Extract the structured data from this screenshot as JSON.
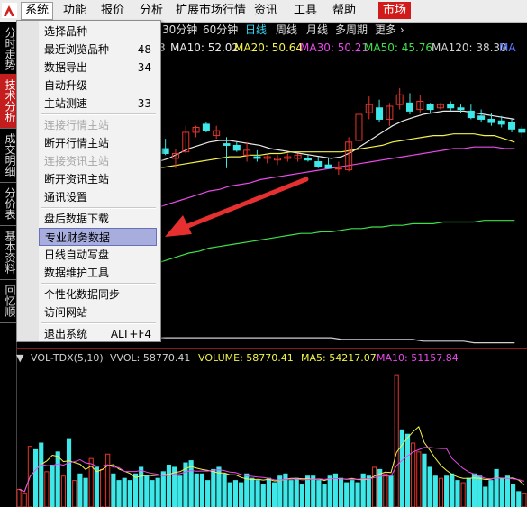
{
  "menubar": {
    "logo_icon": "app-logo-icon",
    "items": [
      {
        "label": "系统",
        "active": true
      },
      {
        "label": "功能"
      },
      {
        "label": "报价"
      },
      {
        "label": "分析"
      },
      {
        "label": "扩展市场行情"
      },
      {
        "label": "资讯"
      },
      {
        "label": "工具"
      },
      {
        "label": "帮助"
      }
    ],
    "market_button": "市场"
  },
  "sidebar": {
    "tabs": [
      {
        "label": "分时走势"
      },
      {
        "label": "技术分析",
        "selected": true
      },
      {
        "label": "成交明细"
      },
      {
        "label": "分价表"
      },
      {
        "label": "基本资料"
      },
      {
        "label": "回忆顺"
      }
    ]
  },
  "period_bar": {
    "items": [
      {
        "label": "30分钟"
      },
      {
        "label": "60分钟"
      },
      {
        "label": "日线",
        "selected": true
      },
      {
        "label": "周线"
      },
      {
        "label": "月线"
      },
      {
        "label": "多周期"
      },
      {
        "label": "更多"
      }
    ],
    "more_icon": "chevron-right-icon"
  },
  "ma_legend": [
    {
      "text": "3",
      "color": "#e8e8e8"
    },
    {
      "text": "MA10: 52.02",
      "color": "#e8e8e8"
    },
    {
      "text": "MA20: 50.64",
      "color": "#f2f24a"
    },
    {
      "text": "MA30: 50.21",
      "color": "#e94ae9"
    },
    {
      "text": "MA50: 45.76",
      "color": "#3ee04a"
    },
    {
      "text": "MA120: 38.30",
      "color": "#d0d0d0"
    },
    {
      "text": "MA",
      "color": "#5a78ff"
    }
  ],
  "vol_legend": [
    {
      "text": "VOL-TDX(5,10)",
      "color": "#d0d0d0"
    },
    {
      "text": "VVOL: 58770.41",
      "color": "#d0d0d0"
    },
    {
      "text": "VOLUME: 58770.41",
      "color": "#f2f24a"
    },
    {
      "text": "MA5: 54217.07",
      "color": "#f2f24a"
    },
    {
      "text": "MA10: 51157.84",
      "color": "#e94ae9"
    }
  ],
  "system_menu": {
    "items": [
      {
        "label": "选择品种"
      },
      {
        "label": "最近浏览品种",
        "shortcut": "48"
      },
      {
        "label": "数据导出",
        "shortcut": "34"
      },
      {
        "label": "自动升级"
      },
      {
        "label": "主站测速",
        "shortcut": "33"
      },
      {
        "separator": true
      },
      {
        "label": "连接行情主站",
        "disabled": true
      },
      {
        "label": "断开行情主站"
      },
      {
        "label": "连接资讯主站",
        "disabled": true
      },
      {
        "label": "断开资讯主站"
      },
      {
        "label": "通讯设置"
      },
      {
        "separator": true
      },
      {
        "label": "盘后数据下载"
      },
      {
        "label": "专业财务数据",
        "highlighted": true
      },
      {
        "label": "日线自动写盘"
      },
      {
        "label": "数据维护工具"
      },
      {
        "separator": true
      },
      {
        "label": "个性化数据同步"
      },
      {
        "label": "访问网站"
      },
      {
        "separator": true
      },
      {
        "label": "退出系统",
        "shortcut": "ALT+F4"
      }
    ]
  },
  "colors": {
    "up": "#e8342a",
    "down": "#3fe8e8",
    "menu_highlight": "#a7aede",
    "annotation_arrow": "#e63030"
  },
  "chart_data": [
    {
      "type": "candlestick",
      "note_series": "daily K-line with moving averages (values relative, read from shape)",
      "candles": [
        {
          "o": 50.2,
          "h": 50.8,
          "l": 49.8,
          "c": 49.9
        },
        {
          "o": 49.6,
          "h": 50.2,
          "l": 49.0,
          "c": 49.9
        },
        {
          "o": 50.0,
          "h": 51.6,
          "l": 49.9,
          "c": 51.2
        },
        {
          "o": 51.2,
          "h": 51.6,
          "l": 50.9,
          "c": 51.5
        },
        {
          "o": 51.7,
          "h": 51.8,
          "l": 51.2,
          "c": 51.3
        },
        {
          "o": 51.0,
          "h": 51.6,
          "l": 50.8,
          "c": 51.3
        },
        {
          "o": 50.5,
          "h": 50.9,
          "l": 49.0,
          "c": 50.4
        },
        {
          "o": 50.4,
          "h": 50.6,
          "l": 50.0,
          "c": 50.1
        },
        {
          "o": 49.8,
          "h": 50.6,
          "l": 49.4,
          "c": 50.1
        },
        {
          "o": 49.7,
          "h": 50.1,
          "l": 49.4,
          "c": 49.6
        },
        {
          "o": 49.6,
          "h": 49.8,
          "l": 49.3,
          "c": 49.7
        },
        {
          "o": 49.5,
          "h": 49.8,
          "l": 49.2,
          "c": 49.6
        },
        {
          "o": 49.6,
          "h": 49.9,
          "l": 49.4,
          "c": 49.7
        },
        {
          "o": 49.6,
          "h": 49.9,
          "l": 49.4,
          "c": 49.8
        },
        {
          "o": 49.6,
          "h": 49.8,
          "l": 49.4,
          "c": 49.5
        },
        {
          "o": 49.4,
          "h": 49.7,
          "l": 49.0,
          "c": 49.1
        },
        {
          "o": 49.2,
          "h": 49.6,
          "l": 49.0,
          "c": 49.0
        },
        {
          "o": 49.0,
          "h": 49.4,
          "l": 48.6,
          "c": 49.0
        },
        {
          "o": 48.9,
          "h": 50.9,
          "l": 48.8,
          "c": 50.6
        },
        {
          "o": 50.7,
          "h": 53.0,
          "l": 50.5,
          "c": 52.3
        },
        {
          "o": 52.4,
          "h": 53.4,
          "l": 52.0,
          "c": 52.9
        },
        {
          "o": 52.7,
          "h": 53.2,
          "l": 51.8,
          "c": 52.0
        },
        {
          "o": 52.0,
          "h": 53.0,
          "l": 51.6,
          "c": 52.8
        },
        {
          "o": 52.9,
          "h": 53.9,
          "l": 52.6,
          "c": 53.5
        },
        {
          "o": 53.0,
          "h": 53.6,
          "l": 52.3,
          "c": 52.5
        },
        {
          "o": 52.6,
          "h": 53.5,
          "l": 52.4,
          "c": 53.1
        },
        {
          "o": 52.9,
          "h": 53.0,
          "l": 52.4,
          "c": 52.6
        },
        {
          "o": 52.7,
          "h": 53.0,
          "l": 52.6,
          "c": 52.9
        },
        {
          "o": 52.9,
          "h": 53.1,
          "l": 52.5,
          "c": 52.7
        },
        {
          "o": 52.7,
          "h": 52.9,
          "l": 52.4,
          "c": 52.6
        },
        {
          "o": 52.5,
          "h": 52.9,
          "l": 52.0,
          "c": 52.1
        },
        {
          "o": 52.2,
          "h": 52.6,
          "l": 51.8,
          "c": 52.0
        },
        {
          "o": 52.0,
          "h": 52.4,
          "l": 51.6,
          "c": 51.8
        },
        {
          "o": 51.9,
          "h": 52.2,
          "l": 51.5,
          "c": 51.7
        },
        {
          "o": 51.8,
          "h": 52.0,
          "l": 51.2,
          "c": 51.4
        },
        {
          "o": 51.4,
          "h": 51.6,
          "l": 50.9,
          "c": 51.2
        }
      ],
      "ylim": [
        38,
        56
      ],
      "ma_lines": [
        {
          "name": "MA10",
          "color": "#e8e8e8",
          "values": [
            49.4,
            49.6,
            49.9,
            50.2,
            50.4,
            50.6,
            50.7,
            50.7,
            50.6,
            50.5,
            50.4,
            50.2,
            50.1,
            50.0,
            49.9,
            49.8,
            49.7,
            49.6,
            49.7,
            50.0,
            50.4,
            50.8,
            51.2,
            51.6,
            51.9,
            52.1,
            52.3,
            52.4,
            52.5,
            52.5,
            52.5,
            52.4,
            52.3,
            52.2,
            52.1,
            52.0
          ]
        },
        {
          "name": "MA20",
          "color": "#f2f24a",
          "values": [
            49.0,
            49.1,
            49.2,
            49.3,
            49.4,
            49.5,
            49.6,
            49.7,
            49.7,
            49.8,
            49.8,
            49.9,
            49.9,
            50.0,
            50.0,
            50.0,
            50.0,
            50.0,
            50.0,
            50.1,
            50.2,
            50.3,
            50.4,
            50.6,
            50.7,
            50.8,
            50.9,
            51.0,
            51.0,
            51.1,
            51.1,
            51.1,
            51.0,
            51.0,
            50.8,
            50.6
          ]
        },
        {
          "name": "MA30",
          "color": "#e94ae9",
          "values": [
            46.6,
            46.8,
            47.0,
            47.2,
            47.4,
            47.6,
            47.7,
            47.9,
            48.0,
            48.1,
            48.3,
            48.4,
            48.5,
            48.6,
            48.7,
            48.8,
            48.9,
            49.0,
            49.1,
            49.2,
            49.3,
            49.4,
            49.5,
            49.6,
            49.7,
            49.8,
            49.9,
            50.0,
            50.1,
            50.2,
            50.2,
            50.3,
            50.3,
            50.3,
            50.2,
            50.2
          ]
        },
        {
          "name": "MA50",
          "color": "#3ee04a",
          "values": [
            43.2,
            43.4,
            43.6,
            43.8,
            43.9,
            44.1,
            44.2,
            44.3,
            44.4,
            44.5,
            44.6,
            44.7,
            44.8,
            44.9,
            45.0,
            45.0,
            45.1,
            45.1,
            45.2,
            45.3,
            45.3,
            45.4,
            45.4,
            45.5,
            45.5,
            45.6,
            45.6,
            45.6,
            45.7,
            45.7,
            45.7,
            45.7,
            45.8,
            45.8,
            45.8,
            45.8
          ]
        },
        {
          "name": "MA120",
          "color": "#d0d0d0",
          "values": [
            38.6,
            38.6,
            38.6,
            38.6,
            38.6,
            38.6,
            38.6,
            38.6,
            38.6,
            38.6,
            38.6,
            38.6,
            38.6,
            38.6,
            38.6,
            38.6,
            38.6,
            38.6,
            38.5,
            38.5,
            38.5,
            38.5,
            38.5,
            38.5,
            38.5,
            38.5,
            38.4,
            38.4,
            38.4,
            38.4,
            38.4,
            38.3,
            38.3,
            38.3,
            38.3,
            38.3
          ]
        }
      ]
    },
    {
      "type": "bar",
      "name": "VOL-TDX",
      "values": [
        16000,
        12000,
        55000,
        52000,
        58000,
        32000,
        38000,
        50000,
        28000,
        62000,
        24000,
        30000,
        26000,
        44000,
        36000,
        34000,
        48000,
        30000,
        24000,
        26000,
        24000,
        30000,
        36000,
        28000,
        24000,
        26000,
        32000,
        38000,
        36000,
        28000,
        40000,
        42000,
        30000,
        30000,
        24000,
        34000,
        36000,
        30000,
        22000,
        24000,
        22000,
        30000,
        26000,
        24000,
        20000,
        26000,
        22000,
        28000,
        30000,
        24000,
        26000,
        20000,
        28000,
        28000,
        24000,
        20000,
        28000,
        30000,
        26000,
        22000,
        24000,
        22000,
        30000,
        28000,
        36000,
        34000,
        30000,
        28000,
        120000,
        70000,
        66000,
        58000,
        50000,
        48000,
        36000,
        28000,
        26000,
        28000,
        30000,
        24000,
        22000,
        26000,
        30000,
        28000,
        18000,
        24000,
        34000,
        26000,
        28000,
        20000,
        14000,
        12000
      ],
      "up": [
        true,
        true,
        true,
        false,
        false,
        true,
        false,
        false,
        true,
        false,
        true,
        false,
        false,
        true,
        false,
        true,
        true,
        false,
        false,
        false,
        false,
        false,
        false,
        false,
        false,
        false,
        false,
        false,
        false,
        false,
        false,
        false,
        false,
        false,
        false,
        false,
        false,
        false,
        false,
        false,
        false,
        false,
        false,
        false,
        false,
        false,
        false,
        false,
        false,
        false,
        false,
        false,
        false,
        false,
        false,
        false,
        false,
        false,
        false,
        false,
        false,
        false,
        false,
        false,
        true,
        false,
        true,
        false,
        true,
        false,
        false,
        true,
        true,
        false,
        false,
        false,
        true,
        false,
        false,
        false,
        true,
        false,
        false,
        false,
        false,
        false,
        false,
        false,
        false,
        false,
        false,
        true
      ],
      "ylim": [
        0,
        125000
      ]
    }
  ]
}
